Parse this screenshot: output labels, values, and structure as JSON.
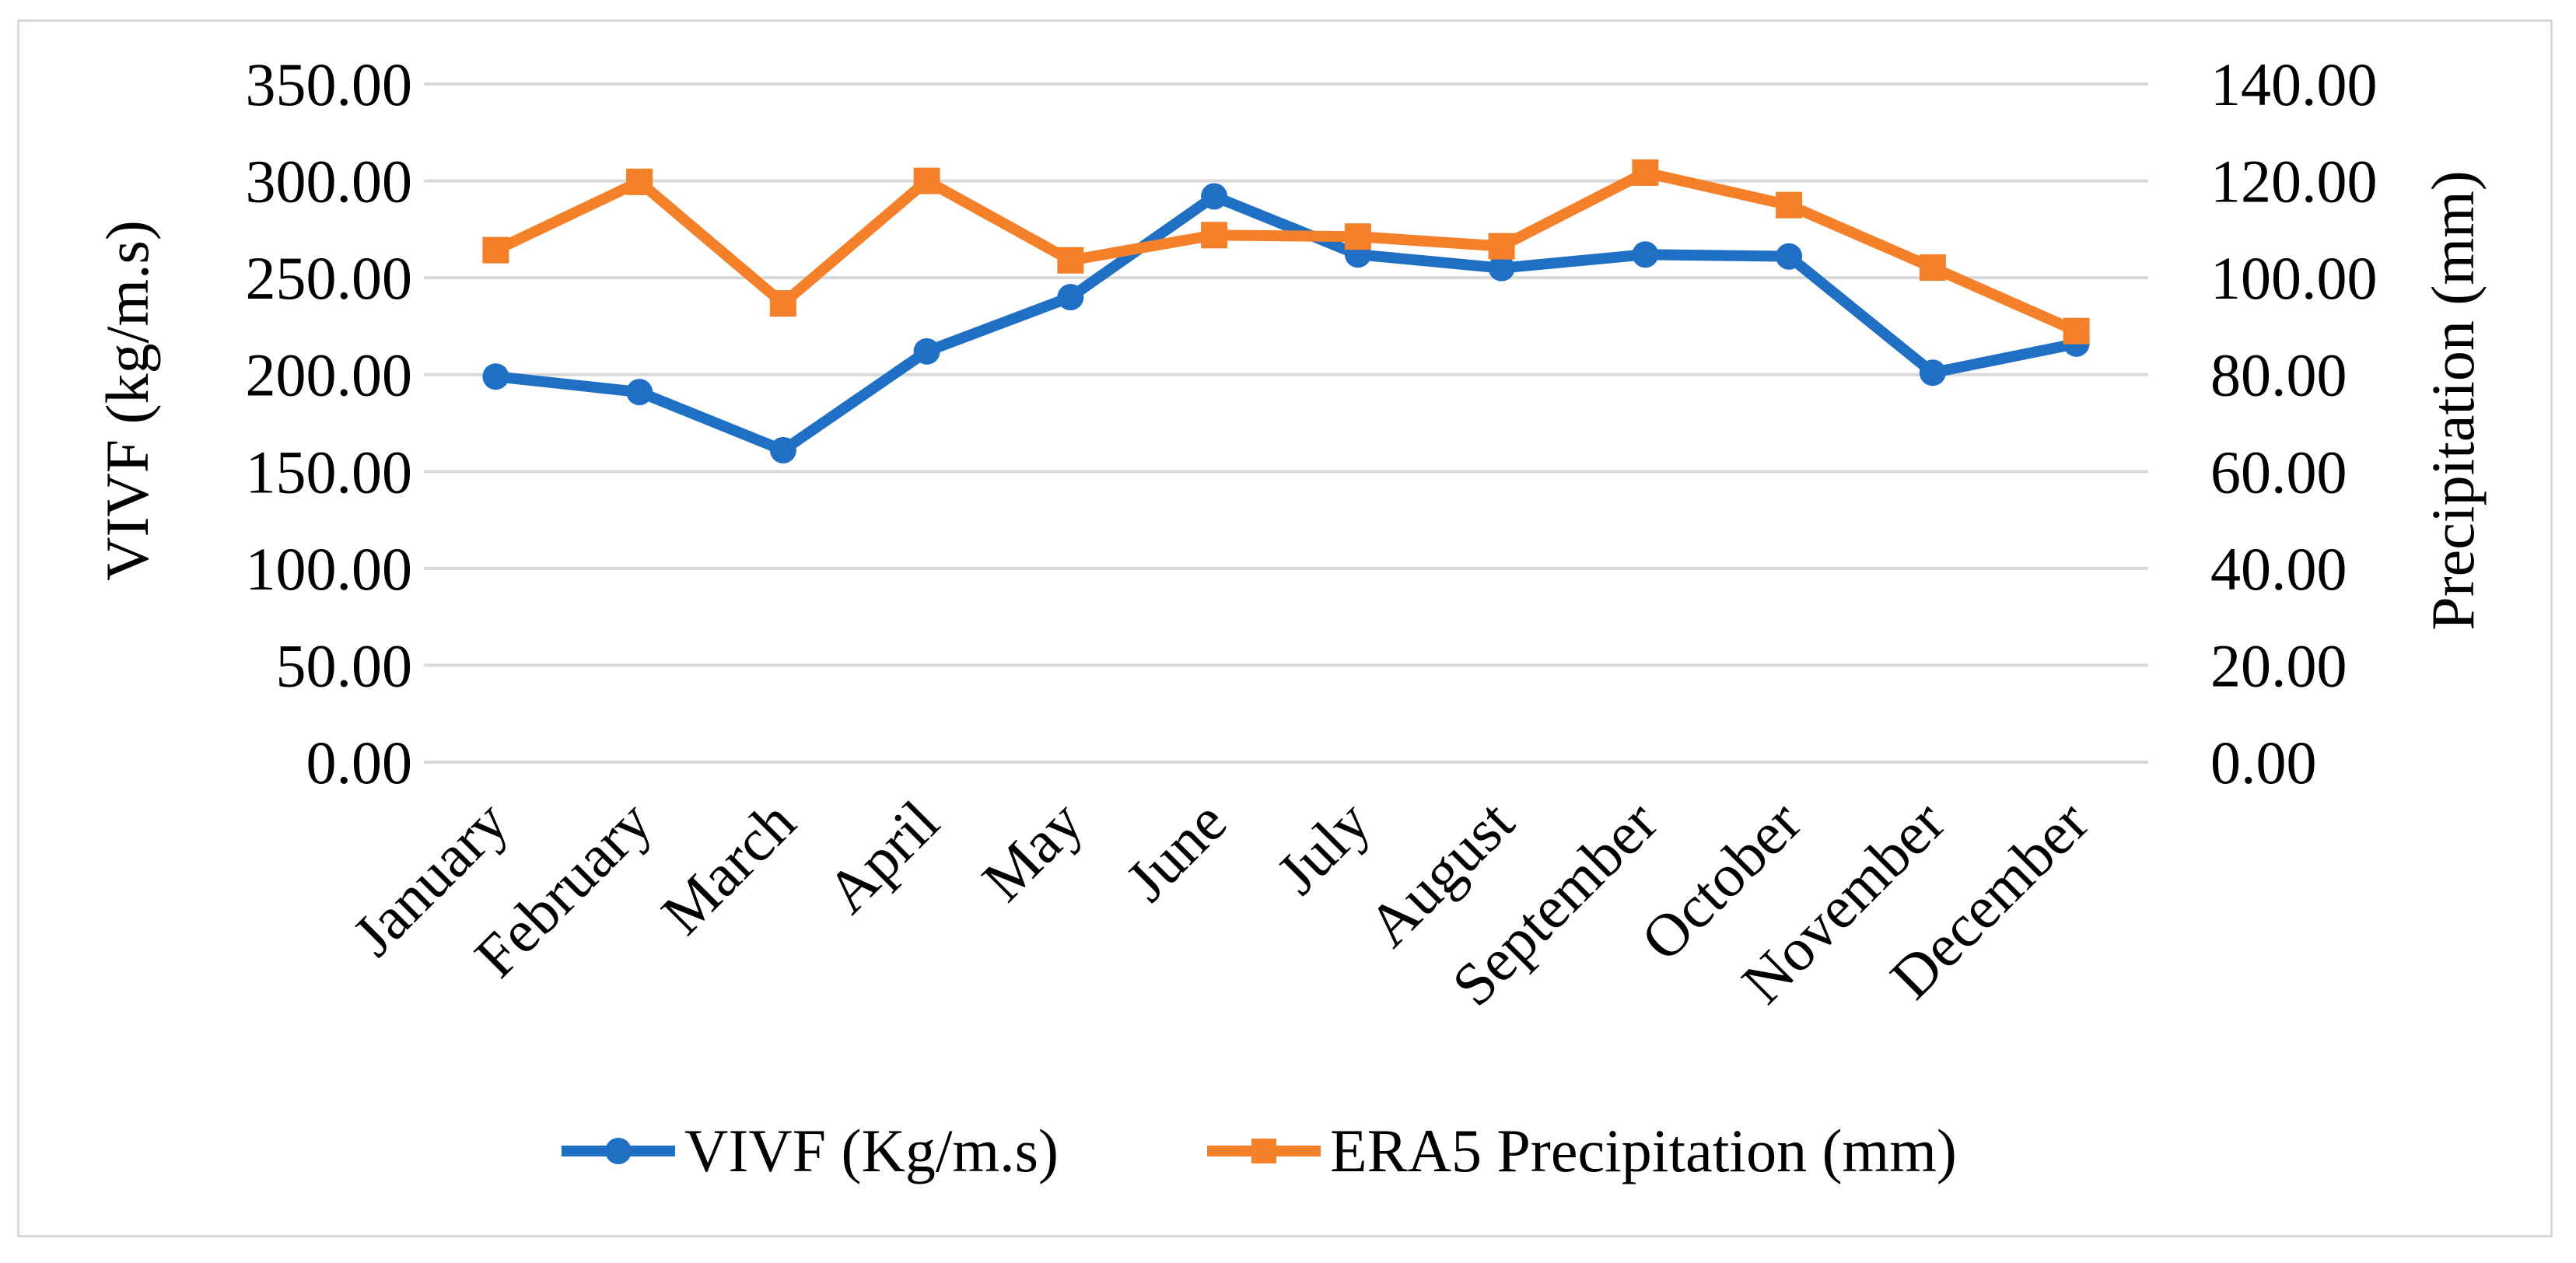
{
  "chart_data": {
    "type": "line",
    "title": "",
    "categories": [
      "January",
      "February",
      "March",
      "April",
      "May",
      "June",
      "July",
      "August",
      "September",
      "October",
      "November",
      "December"
    ],
    "series": [
      {
        "name": "VIVF (Kg/m.s)",
        "axis": "left",
        "color": "#1f6fc5",
        "marker": "circle",
        "values": [
          199,
          191,
          161,
          212,
          240,
          292,
          262,
          255,
          262,
          261,
          201,
          216
        ]
      },
      {
        "name": "ERA5 Precipitation (mm)",
        "axis": "right",
        "color": "#f5802a",
        "marker": "square",
        "values": [
          105.7,
          119.8,
          94.7,
          120.0,
          103.6,
          108.8,
          108.5,
          106.5,
          121.7,
          115.0,
          102.1,
          89.0
        ]
      }
    ],
    "ylabel": "VIVF (kg/m.s)",
    "y2label": "Precipitation (mm)",
    "ylim": [
      0,
      350
    ],
    "y2lim": [
      0,
      140
    ],
    "yticks": [
      "0.00",
      "50.00",
      "100.00",
      "150.00",
      "200.00",
      "250.00",
      "300.00",
      "350.00"
    ],
    "y2ticks": [
      "0.00",
      "20.00",
      "40.00",
      "60.00",
      "80.00",
      "100.00",
      "120.00",
      "140.00"
    ],
    "grid": true,
    "legend": "bottom"
  }
}
